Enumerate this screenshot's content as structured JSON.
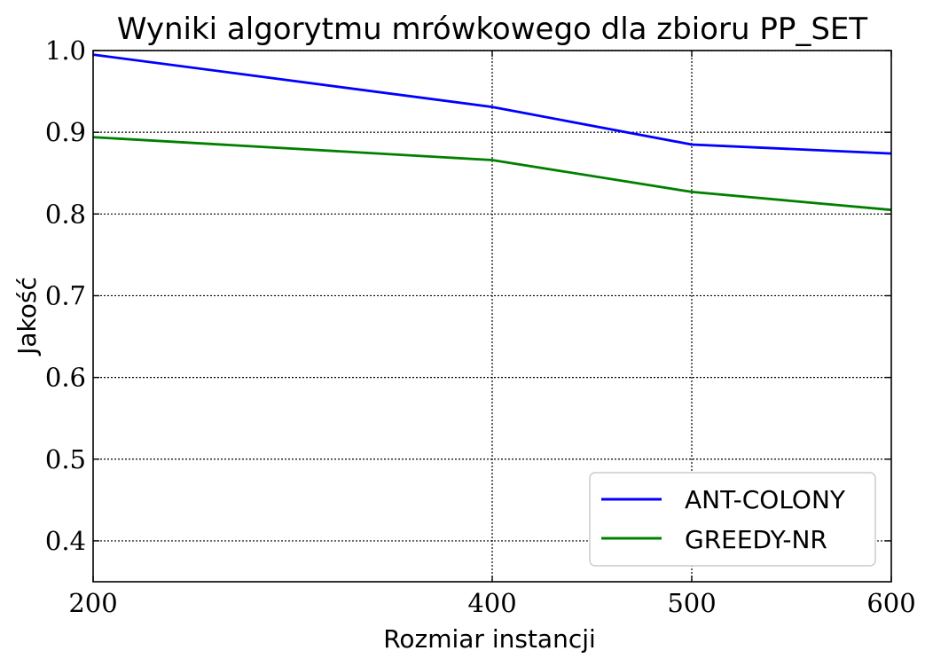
{
  "chart_data": {
    "type": "line",
    "title": "Wyniki algorytmu mrówkowego dla zbioru PP_SET",
    "xlabel": "Rozmiar instancji",
    "ylabel": "Jakość",
    "x": [
      200,
      400,
      500,
      600
    ],
    "xticks": [
      "200",
      "400",
      "500",
      "600"
    ],
    "yticks": [
      "0.4",
      "0.5",
      "0.6",
      "0.7",
      "0.8",
      "0.9",
      "1.0"
    ],
    "ylim": [
      0.35,
      1.0
    ],
    "xlim": [
      200,
      600
    ],
    "grid": true,
    "legend_position": "bottom-right",
    "series": [
      {
        "name": "ANT-COLONY",
        "color": "#0000ff",
        "values": [
          0.995,
          0.931,
          0.885,
          0.874
        ]
      },
      {
        "name": "GREEDY-NR",
        "color": "#008000",
        "values": [
          0.894,
          0.866,
          0.827,
          0.805
        ]
      }
    ]
  }
}
